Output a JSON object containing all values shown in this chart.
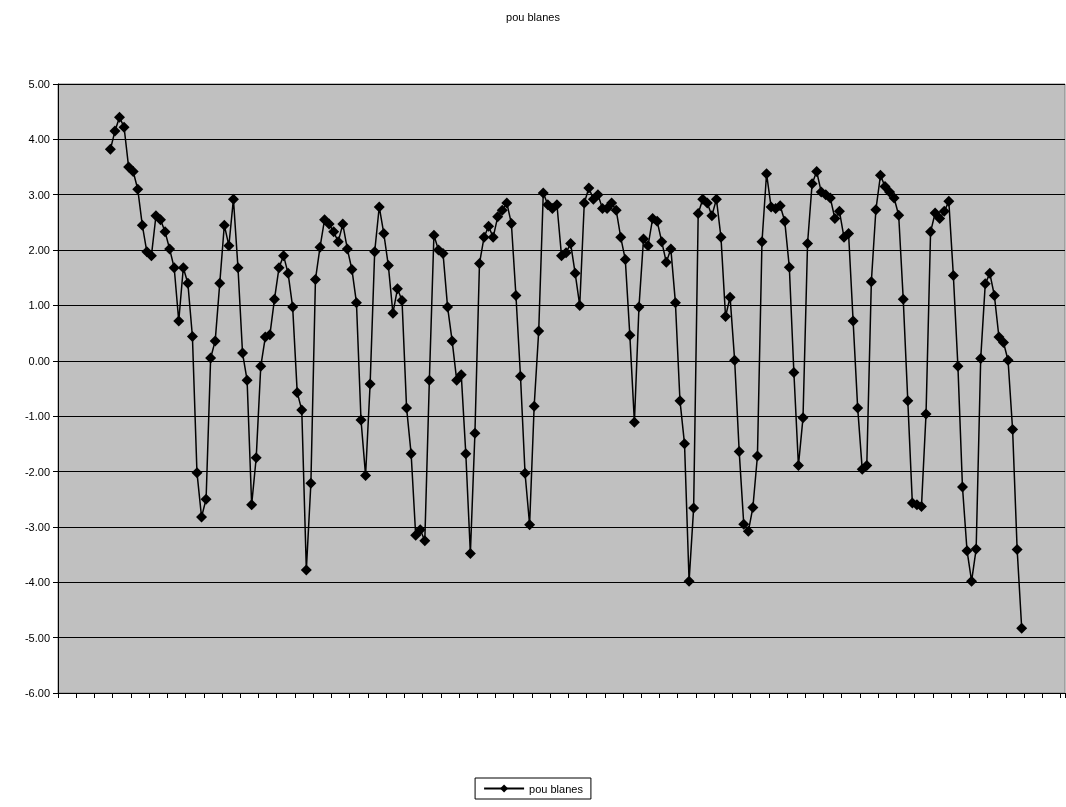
{
  "chart_data": {
    "type": "line",
    "title": "pou blanes",
    "categories": [
      null,
      null,
      null,
      null,
      null,
      null,
      null,
      null,
      null,
      null,
      null,
      null,
      null,
      null,
      null,
      null,
      null,
      null,
      null,
      null,
      null,
      null,
      null,
      null,
      null,
      null,
      null,
      null,
      null,
      null,
      null,
      null,
      null,
      null,
      null,
      null,
      null,
      null,
      null,
      null,
      null,
      null,
      null,
      null,
      null,
      null,
      null,
      null,
      null,
      null,
      null,
      null,
      null,
      null,
      null,
      null,
      null,
      null,
      null,
      null,
      null,
      null,
      null,
      null,
      null,
      null,
      null,
      null,
      null,
      null,
      null,
      null,
      null,
      null,
      null,
      null,
      null,
      null,
      null,
      null,
      null,
      null,
      null,
      null,
      null,
      null,
      null,
      null,
      null,
      null,
      null,
      null,
      null,
      null,
      null,
      null,
      null,
      null,
      null,
      null,
      null,
      null,
      null,
      null,
      null,
      null,
      null,
      null,
      null,
      null,
      null,
      null,
      null,
      null,
      null,
      null,
      null,
      null,
      null,
      null,
      null,
      null,
      null,
      null,
      null,
      null,
      null,
      null,
      null,
      null,
      null,
      null,
      null,
      null,
      null,
      null,
      null,
      null,
      null,
      null,
      null,
      null,
      null,
      null,
      null,
      null,
      null,
      null,
      null,
      null,
      null,
      null,
      null,
      null,
      null,
      null,
      null,
      null,
      null,
      null,
      null,
      null,
      null,
      null,
      null,
      null,
      null,
      null,
      null,
      null,
      null,
      null,
      null,
      null,
      null,
      null,
      null,
      null,
      null,
      null,
      null,
      null,
      null,
      null,
      null,
      null,
      null,
      null,
      null,
      null,
      null,
      null,
      null,
      null,
      null,
      null,
      null,
      null,
      null,
      null,
      null,
      null,
      null,
      null,
      null,
      null,
      null,
      null,
      null,
      null,
      null,
      null,
      null,
      null,
      null,
      null,
      null,
      null,
      null,
      null,
      null
    ],
    "series": [
      {
        "name": "pou blanes",
        "color": "#000000",
        "values": [
          null,
          null,
          null,
          null,
          null,
          null,
          null,
          null,
          null,
          null,
          null,
          3.82,
          4.15,
          4.4,
          4.22,
          3.5,
          3.42,
          3.1,
          2.45,
          1.97,
          1.9,
          2.62,
          2.55,
          2.33,
          2.02,
          1.68,
          0.72,
          1.68,
          1.4,
          0.44,
          -2.02,
          -2.82,
          -2.5,
          0.05,
          0.36,
          1.4,
          2.45,
          2.08,
          2.92,
          1.68,
          0.14,
          -0.35,
          -2.6,
          -1.75,
          -0.1,
          0.43,
          0.47,
          1.11,
          1.68,
          1.9,
          1.58,
          0.97,
          -0.57,
          -0.89,
          -3.78,
          -2.21,
          1.47,
          2.05,
          2.55,
          2.47,
          2.33,
          2.15,
          2.47,
          2.02,
          1.65,
          1.05,
          -1.07,
          -2.07,
          -0.42,
          1.97,
          2.78,
          2.3,
          1.72,
          0.86,
          1.3,
          1.09,
          -0.85,
          -1.68,
          -3.15,
          -3.05,
          -3.25,
          -0.35,
          2.27,
          2.0,
          1.94,
          0.97,
          0.36,
          -0.35,
          -0.25,
          -1.68,
          -3.48,
          -1.31,
          1.76,
          2.23,
          2.43,
          2.23,
          2.6,
          2.72,
          2.85,
          2.48,
          1.18,
          -0.28,
          -2.03,
          -2.96,
          -0.82,
          0.54,
          3.03,
          2.82,
          2.75,
          2.82,
          1.9,
          1.95,
          2.12,
          1.58,
          1.0,
          2.85,
          3.12,
          2.92,
          3.0,
          2.75,
          2.75,
          2.85,
          2.72,
          2.23,
          1.83,
          0.46,
          -1.11,
          0.97,
          2.2,
          2.08,
          2.57,
          2.52,
          2.15,
          1.78,
          2.02,
          1.05,
          -0.72,
          -1.5,
          -3.98,
          -2.66,
          2.66,
          2.92,
          2.85,
          2.62,
          2.92,
          2.23,
          0.8,
          1.15,
          0.01,
          -1.64,
          -2.95,
          -3.08,
          -2.65,
          -1.72,
          2.15,
          3.38,
          2.78,
          2.75,
          2.8,
          2.52,
          1.69,
          -0.21,
          -1.89,
          -1.03,
          2.12,
          3.2,
          3.42,
          3.05,
          3.0,
          2.94,
          2.57,
          2.7,
          2.23,
          2.3,
          0.72,
          -0.85,
          -1.96,
          -1.89,
          1.43,
          2.73,
          3.35,
          3.15,
          3.05,
          2.94,
          2.63,
          1.11,
          -0.72,
          -2.57,
          -2.6,
          -2.63,
          -0.96,
          2.33,
          2.67,
          2.57,
          2.7,
          2.88,
          1.54,
          -0.1,
          -2.28,
          -3.43,
          -3.98,
          -3.4,
          0.04,
          1.39,
          1.58,
          1.18,
          0.43,
          0.33,
          0.01,
          -1.24,
          -3.41,
          -4.83,
          null,
          null,
          null,
          null,
          null,
          null,
          null,
          null,
          null
        ]
      }
    ],
    "ylim": [
      -6,
      5
    ],
    "yticks": [
      {
        "value": -6,
        "label": "-6.00"
      },
      {
        "value": -5,
        "label": "-5.00"
      },
      {
        "value": -4,
        "label": "-4.00"
      },
      {
        "value": -3,
        "label": "-3.00"
      },
      {
        "value": -2,
        "label": "-2.00"
      },
      {
        "value": -1,
        "label": "-1.00"
      },
      {
        "value": 0,
        "label": "0.00"
      },
      {
        "value": 1,
        "label": "1.00"
      },
      {
        "value": 2,
        "label": "2.00"
      },
      {
        "value": 3,
        "label": "3.00"
      },
      {
        "value": 4,
        "label": "4.00"
      },
      {
        "value": 5,
        "label": "5.00"
      }
    ],
    "grid": "y",
    "legend": "bottom",
    "marker": "diamond",
    "line_style": "solid"
  }
}
